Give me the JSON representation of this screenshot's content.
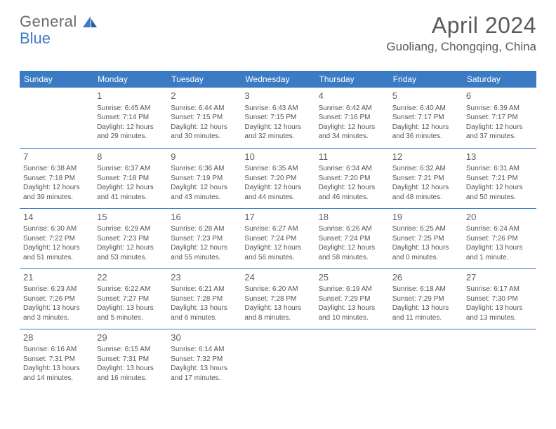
{
  "logo": {
    "text1": "General",
    "text2": "Blue",
    "color1": "#6a6a6a",
    "color2": "#3b7bc4",
    "sail_color": "#3b7bc4"
  },
  "title": "April 2024",
  "location": "Guoliang, Chongqing, China",
  "colors": {
    "header_bg": "#3b7bc4",
    "header_text": "#ffffff",
    "cell_border": "#3b7bc4",
    "text": "#555555",
    "daynum": "#606060",
    "page_bg": "#ffffff"
  },
  "fonts": {
    "title_size": 32,
    "location_size": 17,
    "weekday_size": 12,
    "daynum_size": 13,
    "body_size": 10
  },
  "weekdays": [
    "Sunday",
    "Monday",
    "Tuesday",
    "Wednesday",
    "Thursday",
    "Friday",
    "Saturday"
  ],
  "grid": [
    [
      null,
      {
        "day": "1",
        "sunrise": "Sunrise: 6:45 AM",
        "sunset": "Sunset: 7:14 PM",
        "dl1": "Daylight: 12 hours",
        "dl2": "and 29 minutes."
      },
      {
        "day": "2",
        "sunrise": "Sunrise: 6:44 AM",
        "sunset": "Sunset: 7:15 PM",
        "dl1": "Daylight: 12 hours",
        "dl2": "and 30 minutes."
      },
      {
        "day": "3",
        "sunrise": "Sunrise: 6:43 AM",
        "sunset": "Sunset: 7:15 PM",
        "dl1": "Daylight: 12 hours",
        "dl2": "and 32 minutes."
      },
      {
        "day": "4",
        "sunrise": "Sunrise: 6:42 AM",
        "sunset": "Sunset: 7:16 PM",
        "dl1": "Daylight: 12 hours",
        "dl2": "and 34 minutes."
      },
      {
        "day": "5",
        "sunrise": "Sunrise: 6:40 AM",
        "sunset": "Sunset: 7:17 PM",
        "dl1": "Daylight: 12 hours",
        "dl2": "and 36 minutes."
      },
      {
        "day": "6",
        "sunrise": "Sunrise: 6:39 AM",
        "sunset": "Sunset: 7:17 PM",
        "dl1": "Daylight: 12 hours",
        "dl2": "and 37 minutes."
      }
    ],
    [
      {
        "day": "7",
        "sunrise": "Sunrise: 6:38 AM",
        "sunset": "Sunset: 7:18 PM",
        "dl1": "Daylight: 12 hours",
        "dl2": "and 39 minutes."
      },
      {
        "day": "8",
        "sunrise": "Sunrise: 6:37 AM",
        "sunset": "Sunset: 7:18 PM",
        "dl1": "Daylight: 12 hours",
        "dl2": "and 41 minutes."
      },
      {
        "day": "9",
        "sunrise": "Sunrise: 6:36 AM",
        "sunset": "Sunset: 7:19 PM",
        "dl1": "Daylight: 12 hours",
        "dl2": "and 43 minutes."
      },
      {
        "day": "10",
        "sunrise": "Sunrise: 6:35 AM",
        "sunset": "Sunset: 7:20 PM",
        "dl1": "Daylight: 12 hours",
        "dl2": "and 44 minutes."
      },
      {
        "day": "11",
        "sunrise": "Sunrise: 6:34 AM",
        "sunset": "Sunset: 7:20 PM",
        "dl1": "Daylight: 12 hours",
        "dl2": "and 46 minutes."
      },
      {
        "day": "12",
        "sunrise": "Sunrise: 6:32 AM",
        "sunset": "Sunset: 7:21 PM",
        "dl1": "Daylight: 12 hours",
        "dl2": "and 48 minutes."
      },
      {
        "day": "13",
        "sunrise": "Sunrise: 6:31 AM",
        "sunset": "Sunset: 7:21 PM",
        "dl1": "Daylight: 12 hours",
        "dl2": "and 50 minutes."
      }
    ],
    [
      {
        "day": "14",
        "sunrise": "Sunrise: 6:30 AM",
        "sunset": "Sunset: 7:22 PM",
        "dl1": "Daylight: 12 hours",
        "dl2": "and 51 minutes."
      },
      {
        "day": "15",
        "sunrise": "Sunrise: 6:29 AM",
        "sunset": "Sunset: 7:23 PM",
        "dl1": "Daylight: 12 hours",
        "dl2": "and 53 minutes."
      },
      {
        "day": "16",
        "sunrise": "Sunrise: 6:28 AM",
        "sunset": "Sunset: 7:23 PM",
        "dl1": "Daylight: 12 hours",
        "dl2": "and 55 minutes."
      },
      {
        "day": "17",
        "sunrise": "Sunrise: 6:27 AM",
        "sunset": "Sunset: 7:24 PM",
        "dl1": "Daylight: 12 hours",
        "dl2": "and 56 minutes."
      },
      {
        "day": "18",
        "sunrise": "Sunrise: 6:26 AM",
        "sunset": "Sunset: 7:24 PM",
        "dl1": "Daylight: 12 hours",
        "dl2": "and 58 minutes."
      },
      {
        "day": "19",
        "sunrise": "Sunrise: 6:25 AM",
        "sunset": "Sunset: 7:25 PM",
        "dl1": "Daylight: 13 hours",
        "dl2": "and 0 minutes."
      },
      {
        "day": "20",
        "sunrise": "Sunrise: 6:24 AM",
        "sunset": "Sunset: 7:26 PM",
        "dl1": "Daylight: 13 hours",
        "dl2": "and 1 minute."
      }
    ],
    [
      {
        "day": "21",
        "sunrise": "Sunrise: 6:23 AM",
        "sunset": "Sunset: 7:26 PM",
        "dl1": "Daylight: 13 hours",
        "dl2": "and 3 minutes."
      },
      {
        "day": "22",
        "sunrise": "Sunrise: 6:22 AM",
        "sunset": "Sunset: 7:27 PM",
        "dl1": "Daylight: 13 hours",
        "dl2": "and 5 minutes."
      },
      {
        "day": "23",
        "sunrise": "Sunrise: 6:21 AM",
        "sunset": "Sunset: 7:28 PM",
        "dl1": "Daylight: 13 hours",
        "dl2": "and 6 minutes."
      },
      {
        "day": "24",
        "sunrise": "Sunrise: 6:20 AM",
        "sunset": "Sunset: 7:28 PM",
        "dl1": "Daylight: 13 hours",
        "dl2": "and 8 minutes."
      },
      {
        "day": "25",
        "sunrise": "Sunrise: 6:19 AM",
        "sunset": "Sunset: 7:29 PM",
        "dl1": "Daylight: 13 hours",
        "dl2": "and 10 minutes."
      },
      {
        "day": "26",
        "sunrise": "Sunrise: 6:18 AM",
        "sunset": "Sunset: 7:29 PM",
        "dl1": "Daylight: 13 hours",
        "dl2": "and 11 minutes."
      },
      {
        "day": "27",
        "sunrise": "Sunrise: 6:17 AM",
        "sunset": "Sunset: 7:30 PM",
        "dl1": "Daylight: 13 hours",
        "dl2": "and 13 minutes."
      }
    ],
    [
      {
        "day": "28",
        "sunrise": "Sunrise: 6:16 AM",
        "sunset": "Sunset: 7:31 PM",
        "dl1": "Daylight: 13 hours",
        "dl2": "and 14 minutes."
      },
      {
        "day": "29",
        "sunrise": "Sunrise: 6:15 AM",
        "sunset": "Sunset: 7:31 PM",
        "dl1": "Daylight: 13 hours",
        "dl2": "and 16 minutes."
      },
      {
        "day": "30",
        "sunrise": "Sunrise: 6:14 AM",
        "sunset": "Sunset: 7:32 PM",
        "dl1": "Daylight: 13 hours",
        "dl2": "and 17 minutes."
      },
      null,
      null,
      null,
      null
    ]
  ]
}
